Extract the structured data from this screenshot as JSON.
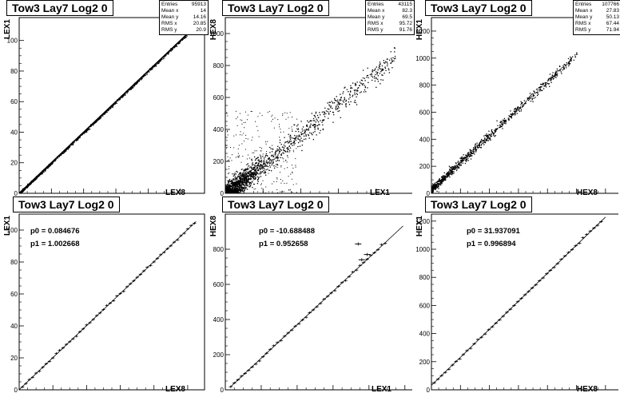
{
  "chart_data": [
    {
      "type": "scatter",
      "title": "Tow3 Lay7 Log2 0",
      "xlabel": "LEX8",
      "ylabel": "LEX1",
      "xlim": [
        0,
        115
      ],
      "ylim": [
        0,
        115
      ],
      "xticks": [
        0,
        20,
        40,
        60,
        80,
        100
      ],
      "yticks": [
        0,
        20,
        40,
        60,
        80,
        100
      ],
      "stats": [
        {
          "label": "Entries",
          "value": "95913"
        },
        {
          "label": "Mean x",
          "value": "14"
        },
        {
          "label": "Mean y",
          "value": "14.16"
        },
        {
          "label": "RMS x",
          "value": "20.85"
        },
        {
          "label": "RMS y",
          "value": "20.9"
        }
      ],
      "trend": {
        "slope": 1.0,
        "intercept": 0,
        "xmin": 0,
        "xmax": 108
      }
    },
    {
      "type": "scatter",
      "title": "Tow3 Lay7 Log2 0",
      "xlabel": "LEX1",
      "ylabel": "HEX8",
      "xlim": [
        0,
        1000
      ],
      "ylim": [
        0,
        1100
      ],
      "xticks": [
        0,
        200,
        400,
        600,
        800
      ],
      "yticks": [
        0,
        200,
        400,
        600,
        800,
        1000
      ],
      "stats": [
        {
          "label": "Entries",
          "value": "43115"
        },
        {
          "label": "Mean x",
          "value": "82.3"
        },
        {
          "label": "Mean y",
          "value": "69.5"
        },
        {
          "label": "RMS x",
          "value": "95.72"
        },
        {
          "label": "RMS y",
          "value": "91.76"
        }
      ],
      "trend": {
        "slope": 0.95,
        "intercept": -10,
        "xmin": 0,
        "xmax": 900
      }
    },
    {
      "type": "scatter",
      "title": "Tow3 Lay7 Log2 0",
      "xlabel": "HEX8",
      "ylabel": "HEX1",
      "xlim": [
        0,
        1300
      ],
      "ylim": [
        0,
        1300
      ],
      "xticks": [
        0,
        200,
        400,
        600,
        800,
        1000,
        1200
      ],
      "yticks": [
        0,
        200,
        400,
        600,
        800,
        1000,
        1200
      ],
      "stats": [
        {
          "label": "Entries",
          "value": "107766"
        },
        {
          "label": "Mean x",
          "value": "27.83"
        },
        {
          "label": "Mean y",
          "value": "50.13"
        },
        {
          "label": "RMS x",
          "value": "67.44"
        },
        {
          "label": "RMS y",
          "value": "71.94"
        }
      ],
      "trend": {
        "slope": 1.0,
        "intercept": 32,
        "xmin": 0,
        "xmax": 1000
      }
    },
    {
      "type": "line",
      "title": "Tow3 Lay7 Log2 0",
      "xlabel": "LEX8",
      "ylabel": "LEX1",
      "xlim": [
        0,
        110
      ],
      "ylim": [
        0,
        110
      ],
      "xticks": [
        0,
        20,
        40,
        60,
        80,
        100
      ],
      "yticks": [
        0,
        20,
        40,
        60,
        80,
        100
      ],
      "fit": [
        {
          "label": "p0 = 0.084676"
        },
        {
          "label": "p1 = 1.002668"
        }
      ],
      "fit_params": {
        "p0": 0.084676,
        "p1": 1.002668,
        "xmin": 0,
        "xmax": 105
      },
      "profile": {
        "xmin": 2,
        "xmax": 105,
        "step": 2
      }
    },
    {
      "type": "line",
      "title": "Tow3 Lay7 Log2 0",
      "xlabel": "LEX1",
      "ylabel": "HEX8",
      "xlim": [
        0,
        1050
      ],
      "ylim": [
        0,
        1000
      ],
      "xticks": [
        0,
        200,
        400,
        600,
        800,
        1000
      ],
      "yticks": [
        0,
        200,
        400,
        600,
        800
      ],
      "fit": [
        {
          "label": "p0 = -10.688488"
        },
        {
          "label": "p1 = 0.952658"
        }
      ],
      "fit_params": {
        "p0": -10.688488,
        "p1": 0.952658,
        "xmin": 30,
        "xmax": 990
      },
      "profile": {
        "xmin": 30,
        "xmax": 900,
        "step": 20
      },
      "outliers": [
        [
          740,
          830
        ],
        [
          760,
          740
        ],
        [
          790,
          770
        ]
      ]
    },
    {
      "type": "line",
      "title": "Tow3 Lay7 Log2 0",
      "xlabel": "HEX8",
      "ylabel": "HEX1",
      "xlim": [
        0,
        1300
      ],
      "ylim": [
        0,
        1250
      ],
      "xticks": [
        0,
        200,
        400,
        600,
        800,
        1000,
        1200
      ],
      "yticks": [
        0,
        200,
        400,
        600,
        800,
        1000,
        1200
      ],
      "fit": [
        {
          "label": "p0 = 31.937091"
        },
        {
          "label": "p1 = 0.996894"
        }
      ],
      "fit_params": {
        "p0": 31.937091,
        "p1": 0.996894,
        "xmin": 0,
        "xmax": 1200
      },
      "profile": {
        "xmin": 20,
        "xmax": 1180,
        "step": 25
      }
    }
  ]
}
